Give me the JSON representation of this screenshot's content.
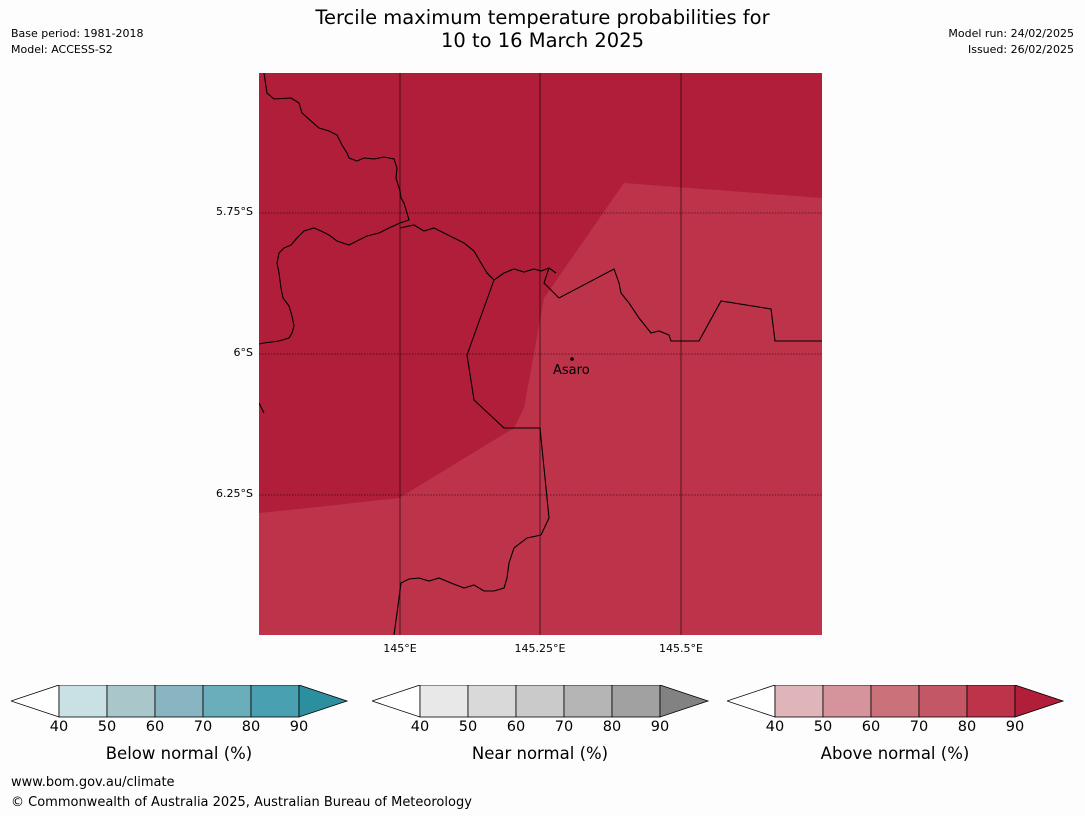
{
  "title": {
    "line1": "Tercile maximum temperature probabilities for",
    "line2": "10 to 16 March 2025"
  },
  "meta": {
    "base_period": "Base period: 1981-2018",
    "model": "Model: ACCESS-S2",
    "model_run": "Model run: 24/02/2025",
    "issued": "Issued: 26/02/2025"
  },
  "map": {
    "lat_labels": [
      "5.75°S",
      "6°S",
      "6.25°S"
    ],
    "lon_labels": [
      "145°E",
      "145.25°E",
      "145.5°E"
    ],
    "place": "Asaro",
    "colors": {
      "above_90": "#b01e3a",
      "above_80": "#bd334a"
    }
  },
  "colorbars": [
    {
      "label": "Below normal (%)",
      "ticks": [
        "40",
        "50",
        "60",
        "70",
        "80",
        "90"
      ],
      "colors": [
        "#c9e1e5",
        "#a9c6cb",
        "#88b5c1",
        "#6baebb",
        "#48a0b0",
        "#2c8f9f"
      ]
    },
    {
      "label": "Near normal (%)",
      "ticks": [
        "40",
        "50",
        "60",
        "70",
        "80",
        "90"
      ],
      "colors": [
        "#e8e8e8",
        "#d9d9d9",
        "#cacaca",
        "#b5b5b5",
        "#a1a1a1",
        "#828282"
      ]
    },
    {
      "label": "Above normal (%)",
      "ticks": [
        "40",
        "50",
        "60",
        "70",
        "80",
        "90"
      ],
      "colors": [
        "#e0b5ba",
        "#d5939b",
        "#cb7179",
        "#c45766",
        "#bd334a",
        "#b01e3a"
      ]
    }
  ],
  "footer": {
    "url": "www.bom.gov.au/climate",
    "copyright": "© Commonwealth of Australia 2025, Australian Bureau of Meteorology"
  }
}
